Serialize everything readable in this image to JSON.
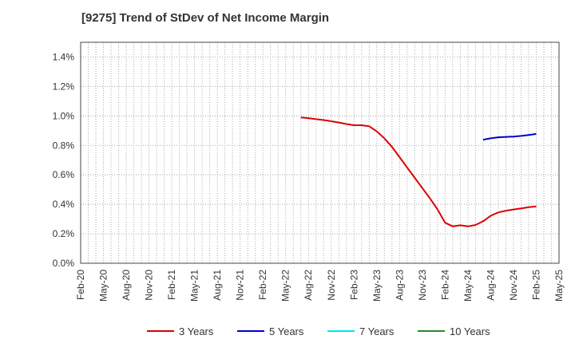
{
  "chart_data": {
    "type": "line",
    "title": "[9275]  Trend of StDev of Net Income Margin",
    "xlabel": "",
    "ylabel": "",
    "x_ticks": [
      "Feb-20",
      "May-20",
      "Aug-20",
      "Nov-20",
      "Feb-21",
      "May-21",
      "Aug-21",
      "Nov-21",
      "Feb-22",
      "May-22",
      "Aug-22",
      "Nov-22",
      "Feb-23",
      "May-23",
      "Aug-23",
      "Nov-23",
      "Feb-24",
      "May-24",
      "Aug-24",
      "Nov-24",
      "Feb-25",
      "May-25"
    ],
    "y_ticks": [
      "0.0%",
      "0.2%",
      "0.4%",
      "0.6%",
      "0.8%",
      "1.0%",
      "1.2%",
      "1.4%"
    ],
    "ylim": [
      0,
      1.5
    ],
    "grid": true,
    "legend_position": "bottom",
    "series": [
      {
        "name": "3 Years",
        "color": "#dd0000",
        "points": [
          [
            "Jul-22",
            0.99
          ],
          [
            "Aug-22",
            0.985
          ],
          [
            "Sep-22",
            0.978
          ],
          [
            "Oct-22",
            0.972
          ],
          [
            "Nov-22",
            0.964
          ],
          [
            "Dec-22",
            0.955
          ],
          [
            "Jan-23",
            0.945
          ],
          [
            "Feb-23",
            0.937
          ],
          [
            "Mar-23",
            0.937
          ],
          [
            "Apr-23",
            0.93
          ],
          [
            "May-23",
            0.895
          ],
          [
            "Jun-23",
            0.848
          ],
          [
            "Jul-23",
            0.79
          ],
          [
            "Aug-23",
            0.72
          ],
          [
            "Sep-23",
            0.65
          ],
          [
            "Oct-23",
            0.58
          ],
          [
            "Nov-23",
            0.51
          ],
          [
            "Dec-23",
            0.44
          ],
          [
            "Jan-24",
            0.365
          ],
          [
            "Feb-24",
            0.275
          ],
          [
            "Mar-24",
            0.25
          ],
          [
            "Apr-24",
            0.258
          ],
          [
            "May-24",
            0.25
          ],
          [
            "Jun-24",
            0.26
          ],
          [
            "Jul-24",
            0.285
          ],
          [
            "Aug-24",
            0.322
          ],
          [
            "Sep-24",
            0.345
          ],
          [
            "Oct-24",
            0.357
          ],
          [
            "Nov-24",
            0.365
          ],
          [
            "Dec-24",
            0.372
          ],
          [
            "Jan-25",
            0.38
          ],
          [
            "Feb-25",
            0.386
          ]
        ]
      },
      {
        "name": "5 Years",
        "color": "#0000cc",
        "points": [
          [
            "Jul-24",
            0.838
          ],
          [
            "Aug-24",
            0.848
          ],
          [
            "Sep-24",
            0.855
          ],
          [
            "Oct-24",
            0.858
          ],
          [
            "Nov-24",
            0.86
          ],
          [
            "Dec-24",
            0.864
          ],
          [
            "Jan-25",
            0.87
          ],
          [
            "Feb-25",
            0.878
          ]
        ]
      },
      {
        "name": "7 Years",
        "color": "#00e5ee",
        "points": []
      },
      {
        "name": "10 Years",
        "color": "#228b22",
        "points": []
      }
    ]
  }
}
